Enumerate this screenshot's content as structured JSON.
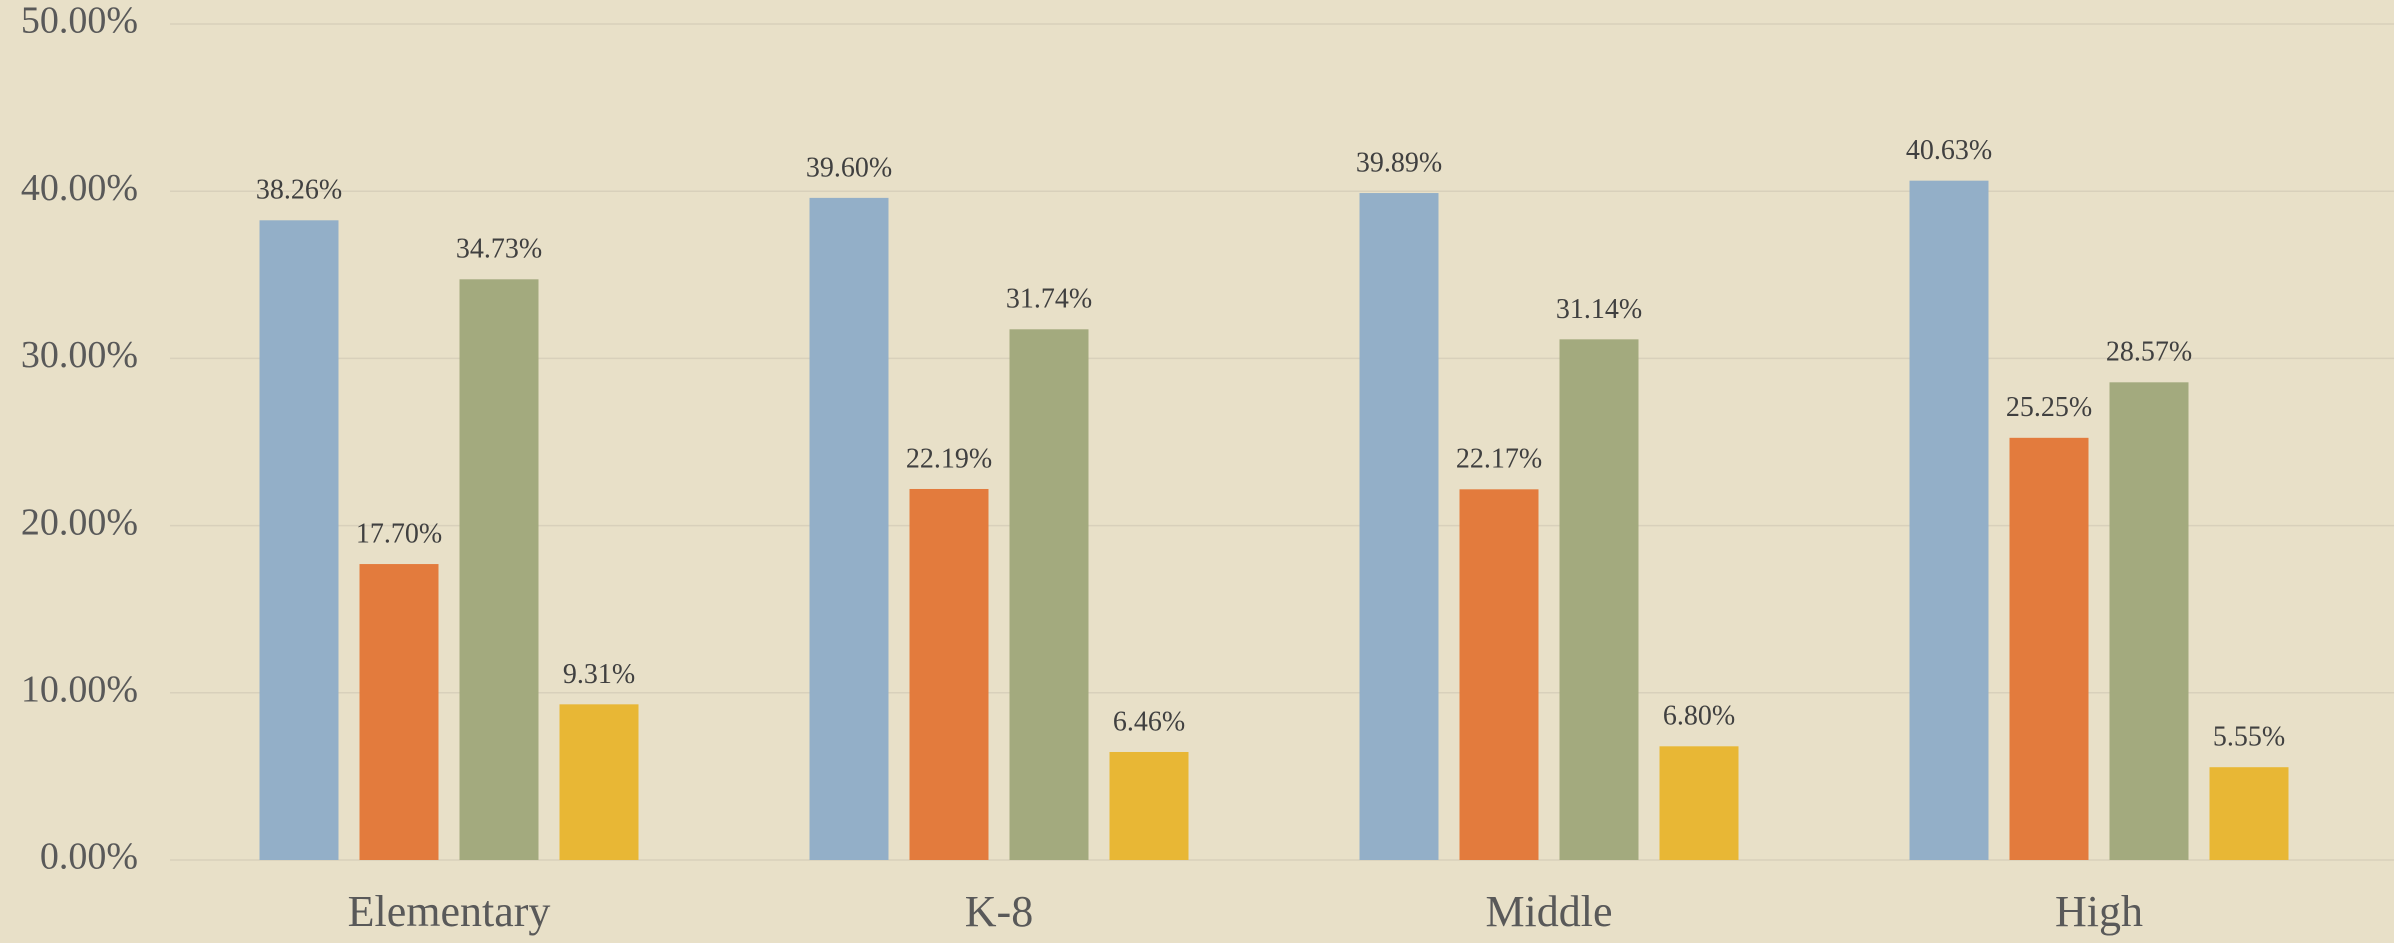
{
  "chart_data": {
    "type": "bar",
    "categories": [
      "Elementary",
      "K-8",
      "Middle",
      "High"
    ],
    "series": [
      {
        "color": "#93afc8",
        "values": [
          38.26,
          39.6,
          39.89,
          40.63
        ],
        "value_labels": [
          "38.26%",
          "39.60%",
          "39.89%",
          "40.63%"
        ]
      },
      {
        "color": "#e37b3d",
        "values": [
          17.7,
          22.19,
          22.17,
          25.25
        ],
        "value_labels": [
          "17.70%",
          "22.19%",
          "22.17%",
          "25.25%"
        ]
      },
      {
        "color": "#a3aa7e",
        "values": [
          34.73,
          31.74,
          31.14,
          28.57
        ],
        "value_labels": [
          "34.73%",
          "31.74%",
          "31.14%",
          "28.57%"
        ]
      },
      {
        "color": "#e8b735",
        "values": [
          9.31,
          6.46,
          6.8,
          5.55
        ],
        "value_labels": [
          "9.31%",
          "6.46%",
          "6.80%",
          "5.55%"
        ]
      }
    ],
    "ylim": [
      0,
      50
    ],
    "yticks": [
      {
        "value": 0,
        "label": "0.00%"
      },
      {
        "value": 10,
        "label": "10.00%"
      },
      {
        "value": 20,
        "label": "20.00%"
      },
      {
        "value": 30,
        "label": "30.00%"
      },
      {
        "value": 40,
        "label": "40.00%"
      },
      {
        "value": 50,
        "label": "50.00%"
      }
    ],
    "grid": true
  }
}
